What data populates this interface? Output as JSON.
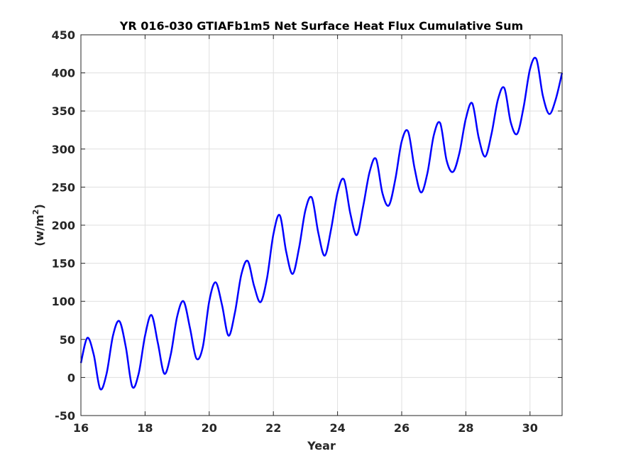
{
  "chart_data": {
    "type": "line",
    "title": "YR 016-030 GTIAFb1m5 Net Surface Heat Flux  Cumulative Sum",
    "xlabel": "Year",
    "ylabel": {
      "text": "(w/m",
      "superscript": "2",
      "suffix": ")"
    },
    "xlim": [
      16,
      31
    ],
    "ylim": [
      -50,
      450
    ],
    "xticks": [
      16,
      18,
      20,
      22,
      24,
      26,
      28,
      30
    ],
    "xtick_labels": [
      "16",
      "18",
      "20",
      "22",
      "24",
      "26",
      "28",
      "30"
    ],
    "yticks": [
      -50,
      0,
      50,
      100,
      150,
      200,
      250,
      300,
      350,
      400,
      450
    ],
    "ytick_labels": [
      "-50",
      "0",
      "50",
      "100",
      "150",
      "200",
      "250",
      "300",
      "350",
      "400",
      "450"
    ],
    "grid": true,
    "series": [
      {
        "color": "#0000ff",
        "x": [
          16.0,
          16.2,
          16.4,
          16.6,
          16.8,
          17.0,
          17.2,
          17.4,
          17.6,
          17.8,
          18.0,
          18.2,
          18.4,
          18.6,
          18.8,
          19.0,
          19.2,
          19.4,
          19.6,
          19.8,
          20.0,
          20.2,
          20.4,
          20.6,
          20.8,
          21.0,
          21.2,
          21.4,
          21.6,
          21.8,
          22.0,
          22.2,
          22.4,
          22.6,
          22.8,
          23.0,
          23.2,
          23.4,
          23.6,
          23.8,
          24.0,
          24.2,
          24.4,
          24.6,
          24.8,
          25.0,
          25.2,
          25.4,
          25.6,
          25.8,
          26.0,
          26.2,
          26.4,
          26.6,
          26.8,
          27.0,
          27.2,
          27.4,
          27.6,
          27.8,
          28.0,
          28.2,
          28.4,
          28.6,
          28.8,
          29.0,
          29.2,
          29.4,
          29.6,
          29.8,
          30.0,
          30.2,
          30.4,
          30.6,
          30.8,
          31.0
        ],
        "y": [
          19,
          52,
          30,
          -15,
          5,
          55,
          74,
          40,
          -12,
          5,
          55,
          82,
          45,
          5,
          30,
          80,
          100,
          65,
          25,
          40,
          100,
          125,
          95,
          55,
          85,
          135,
          153,
          120,
          99,
          130,
          188,
          213,
          165,
          136,
          170,
          220,
          236,
          190,
          160,
          195,
          243,
          260,
          215,
          187,
          225,
          270,
          287,
          242,
          226,
          260,
          310,
          323,
          275,
          243,
          268,
          318,
          334,
          285,
          270,
          295,
          340,
          360,
          315,
          290,
          320,
          365,
          380,
          335,
          320,
          355,
          405,
          418,
          370,
          346,
          365,
          400
        ]
      }
    ]
  }
}
